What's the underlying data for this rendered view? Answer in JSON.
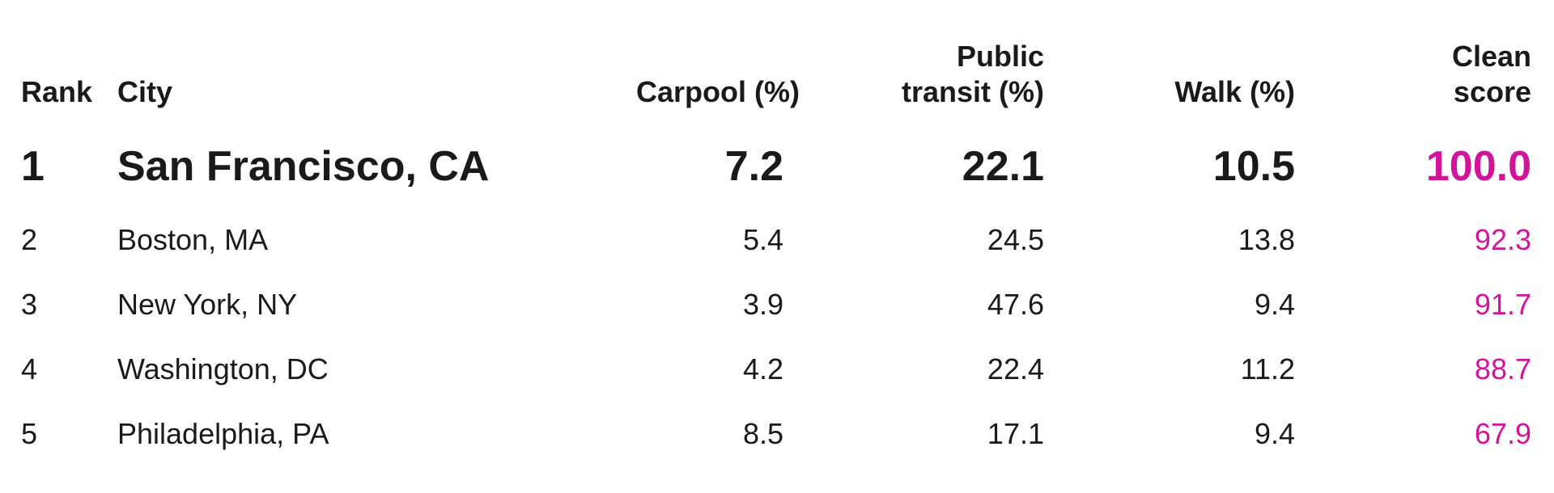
{
  "colors": {
    "text": "#1a1a1a",
    "score_accent": "#d1149a",
    "background": "#ffffff"
  },
  "chart_data": {
    "type": "table",
    "columns": [
      {
        "key": "rank",
        "label": "Rank"
      },
      {
        "key": "city",
        "label": "City"
      },
      {
        "key": "carpool",
        "label": "Carpool (%)"
      },
      {
        "key": "transit",
        "label_line1": "Public",
        "label_line2": "transit (%)"
      },
      {
        "key": "walk",
        "label": "Walk (%)"
      },
      {
        "key": "score",
        "label_line1": "Clean",
        "label_line2": "score"
      }
    ],
    "rows": [
      {
        "rank": "1",
        "city": "San Francisco, CA",
        "carpool": "7.2",
        "transit": "22.1",
        "walk": "10.5",
        "score": "100.0"
      },
      {
        "rank": "2",
        "city": "Boston, MA",
        "carpool": "5.4",
        "transit": "24.5",
        "walk": "13.8",
        "score": "92.3"
      },
      {
        "rank": "3",
        "city": "New York, NY",
        "carpool": "3.9",
        "transit": "47.6",
        "walk": "9.4",
        "score": "91.7"
      },
      {
        "rank": "4",
        "city": "Washington, DC",
        "carpool": "4.2",
        "transit": "22.4",
        "walk": "11.2",
        "score": "88.7"
      },
      {
        "rank": "5",
        "city": "Philadelphia, PA",
        "carpool": "8.5",
        "transit": "17.1",
        "walk": "9.4",
        "score": "67.9"
      }
    ]
  }
}
